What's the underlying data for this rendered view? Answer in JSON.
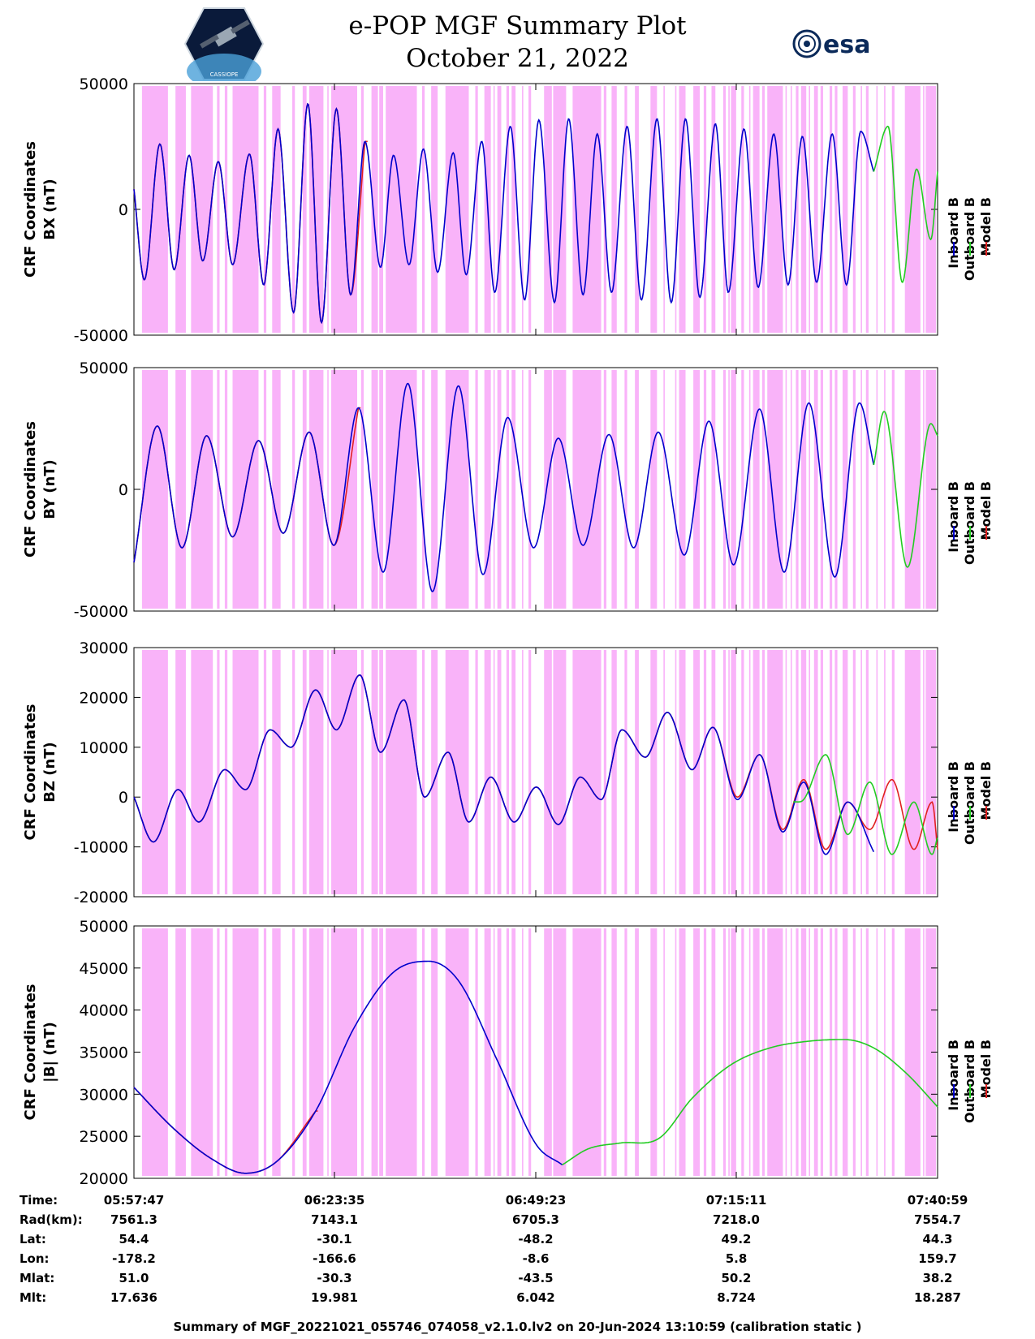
{
  "header": {
    "title_line1": "e-POP MGF Summary Plot",
    "title_line2": "October 21, 2022",
    "logo_left_text": "CASSIOPE",
    "logo_right_text": "esa"
  },
  "colors": {
    "inboard": "#0000cc",
    "outboard": "#22cc22",
    "model": "#e02020",
    "shading": "#f9b3f9"
  },
  "legend": [
    "Inboard B",
    "Outboard B",
    "Model B"
  ],
  "chart_data": [
    {
      "type": "line",
      "panel": "BX",
      "ylabel": [
        "CRF Coordinates",
        "BX (nT)"
      ],
      "ylim": [
        -50000,
        50000
      ],
      "yticks": [
        -50000,
        0,
        50000
      ],
      "x_range_sec": [
        0,
        6192
      ],
      "series": [
        {
          "name": "Inboard B",
          "color": "#0000cc",
          "segment": [
            0,
            5700
          ],
          "x": [
            0,
            80,
            200,
            310,
            425,
            530,
            650,
            760,
            890,
            1000,
            1110,
            1230,
            1340,
            1445,
            1560,
            1670,
            1780,
            1900,
            2000,
            2120,
            2230,
            2340,
            2460,
            2560,
            2680,
            2780,
            2900,
            3010,
            3120,
            3240,
            3350,
            3460,
            3570,
            3680,
            3800,
            3910,
            4030,
            4140,
            4250,
            4360,
            4480,
            4580,
            4700,
            4810,
            4930,
            5040,
            5150,
            5260,
            5380,
            5490,
            5600,
            5700
          ],
          "y": [
            8000,
            -28000,
            26000,
            -24000,
            21500,
            -20500,
            19000,
            -22000,
            22000,
            -30000,
            32000,
            -41000,
            42000,
            -45000,
            40000,
            -34000,
            27000,
            -23000,
            21500,
            -22000,
            24000,
            -25000,
            22500,
            -26000,
            27000,
            -33000,
            33000,
            -36000,
            35500,
            -37000,
            36000,
            -34000,
            30000,
            -33000,
            33000,
            -36000,
            36000,
            -37000,
            36000,
            -35000,
            34000,
            -33000,
            32000,
            -31000,
            30000,
            -30000,
            29000,
            -29000,
            30000,
            -30000,
            31000,
            15000
          ]
        },
        {
          "name": "Outboard B",
          "color": "#22cc22",
          "segment": [
            5700,
            6192
          ],
          "x": [
            5700,
            5810,
            5920,
            6030,
            6140,
            6192
          ],
          "y": [
            15000,
            33000,
            -29000,
            16000,
            -12000,
            15000
          ]
        },
        {
          "name": "Model B",
          "color": "#e02020",
          "segment": [
            0,
            1800
          ],
          "x": [
            0,
            80,
            200,
            310,
            425,
            530,
            650,
            760,
            890,
            1000,
            1110,
            1230,
            1340,
            1445,
            1560,
            1670,
            1780
          ],
          "y": [
            8000,
            -28000,
            26000,
            -24000,
            21500,
            -20500,
            19000,
            -22000,
            22000,
            -30000,
            32000,
            -41000,
            42000,
            -45000,
            40000,
            -34000,
            27000
          ]
        }
      ]
    },
    {
      "type": "line",
      "panel": "BY",
      "ylabel": [
        "CRF Coordinates",
        "BY (nT)"
      ],
      "ylim": [
        -50000,
        50000
      ],
      "yticks": [
        -50000,
        0,
        50000
      ],
      "x_range_sec": [
        0,
        6192
      ],
      "series": [
        {
          "name": "Inboard B",
          "color": "#0000cc",
          "segment": [
            0,
            5700
          ],
          "x": [
            0,
            180,
            370,
            560,
            760,
            960,
            1150,
            1350,
            1540,
            1730,
            1920,
            2110,
            2300,
            2500,
            2690,
            2880,
            3080,
            3270,
            3460,
            3660,
            3850,
            4040,
            4240,
            4430,
            4620,
            4820,
            5010,
            5200,
            5400,
            5590,
            5700
          ],
          "y": [
            -30000,
            26000,
            -24000,
            22000,
            -19500,
            20000,
            -18000,
            23500,
            -23000,
            33500,
            -34000,
            43500,
            -42000,
            42500,
            -35000,
            29500,
            -24000,
            21000,
            -23000,
            22500,
            -24000,
            23500,
            -27000,
            28000,
            -31000,
            33000,
            -34000,
            35500,
            -36000,
            35500,
            10000
          ]
        },
        {
          "name": "Outboard B",
          "color": "#22cc22",
          "segment": [
            5700,
            6192
          ],
          "x": [
            5700,
            5780,
            5960,
            6140,
            6192
          ],
          "y": [
            10000,
            32000,
            -32000,
            27000,
            22000
          ]
        },
        {
          "name": "Model B",
          "color": "#e02020",
          "segment": [
            0,
            1750
          ],
          "x": [
            0,
            180,
            370,
            560,
            760,
            960,
            1150,
            1350,
            1540,
            1730
          ],
          "y": [
            -30000,
            26000,
            -24000,
            22000,
            -19500,
            20000,
            -18000,
            23500,
            -23000,
            33500
          ]
        }
      ]
    },
    {
      "type": "line",
      "panel": "BZ",
      "ylabel": [
        "CRF Coordinates",
        "BZ (nT)"
      ],
      "ylim": [
        -20000,
        30000
      ],
      "yticks": [
        -20000,
        -10000,
        0,
        10000,
        20000,
        30000
      ],
      "x_range_sec": [
        0,
        6192
      ],
      "series": [
        {
          "name": "Inboard B",
          "color": "#0000cc",
          "segment": [
            0,
            5700
          ],
          "x": [
            0,
            150,
            340,
            500,
            700,
            860,
            1050,
            1210,
            1400,
            1560,
            1740,
            1900,
            2080,
            2240,
            2420,
            2580,
            2750,
            2930,
            3100,
            3270,
            3440,
            3600,
            3760,
            3940,
            4110,
            4300,
            4460,
            4650,
            4820,
            5000,
            5160,
            5330,
            5500,
            5700
          ],
          "y": [
            0,
            -9000,
            1500,
            -5000,
            5500,
            1500,
            13500,
            10000,
            21500,
            13500,
            24500,
            9000,
            19500,
            0,
            9000,
            -5000,
            4000,
            -5000,
            2000,
            -5500,
            4000,
            -500,
            13500,
            8000,
            17000,
            5500,
            14000,
            -500,
            8500,
            -7000,
            3000,
            -11500,
            -1000,
            -11000
          ]
        },
        {
          "name": "Outboard B",
          "color": "#22cc22",
          "segment": [
            5080,
            6192
          ],
          "x": [
            5080,
            5160,
            5330,
            5500,
            5670,
            5840,
            6010,
            6150,
            6192
          ],
          "y": [
            -1000,
            -500,
            8500,
            -7500,
            3000,
            -11500,
            -1000,
            -11500,
            -8000
          ]
        },
        {
          "name": "Model B",
          "color": "#e02020",
          "segment": [
            0,
            6192
          ],
          "x": [
            0,
            150,
            340,
            500,
            700,
            860,
            1050,
            1210,
            1400,
            1560,
            1740,
            1900,
            2080,
            2240,
            2420,
            2580,
            2750,
            2930,
            3100,
            3270,
            3440,
            3600,
            3760,
            3940,
            4110,
            4300,
            4460,
            4650,
            4820,
            5000,
            5160,
            5330,
            5500,
            5670,
            5840,
            6010,
            6150,
            6192
          ],
          "y": [
            0,
            -9000,
            1500,
            -5000,
            5500,
            1500,
            13500,
            10000,
            21500,
            13500,
            24500,
            9000,
            19500,
            0,
            9000,
            -5000,
            4000,
            -5000,
            2000,
            -5500,
            4000,
            -500,
            13500,
            8000,
            17000,
            5500,
            14000,
            0,
            8500,
            -6500,
            3500,
            -10500,
            -1000,
            -6500,
            3500,
            -10500,
            -1000,
            -10500
          ]
        }
      ]
    },
    {
      "type": "line",
      "panel": "|B|",
      "ylabel": [
        "CRF Coordinates",
        "|B| (nT)"
      ],
      "ylim": [
        20000,
        50000
      ],
      "yticks": [
        20000,
        25000,
        30000,
        35000,
        40000,
        45000,
        50000
      ],
      "x_range_sec": [
        0,
        6192
      ],
      "series": [
        {
          "name": "Inboard B",
          "color": "#0000cc",
          "segment": [
            0,
            3300
          ],
          "x": [
            0,
            300,
            600,
            860,
            1100,
            1400,
            1700,
            2000,
            2270,
            2500,
            2800,
            3100,
            3300
          ],
          "y": [
            30800,
            26000,
            22300,
            20600,
            22000,
            28000,
            38000,
            44500,
            45800,
            43500,
            34000,
            24000,
            21600
          ]
        },
        {
          "name": "Outboard B",
          "color": "#22cc22",
          "segment": [
            3300,
            6192
          ],
          "x": [
            3300,
            3500,
            3750,
            4050,
            4300,
            4600,
            4900,
            5200,
            5470,
            5700,
            5950,
            6192
          ],
          "y": [
            21600,
            23500,
            24200,
            24800,
            29500,
            33500,
            35500,
            36300,
            36500,
            35500,
            32500,
            28500
          ]
        },
        {
          "name": "Model B",
          "color": "#e02020",
          "segment": [
            0,
            1420
          ],
          "x": [
            0,
            300,
            600,
            860,
            1100,
            1400
          ],
          "y": [
            30800,
            26000,
            22300,
            20600,
            22000,
            28000
          ]
        }
      ]
    }
  ],
  "shading_intervals_sec": [
    [
      62,
      262
    ],
    [
      320,
      400
    ],
    [
      440,
      608
    ],
    [
      640,
      660
    ],
    [
      700,
      720
    ],
    [
      760,
      960
    ],
    [
      1000,
      1020
    ],
    [
      1065,
      1130
    ],
    [
      1220,
      1240
    ],
    [
      1300,
      1330
    ],
    [
      1350,
      1460
    ],
    [
      1490,
      1500
    ],
    [
      1520,
      1720
    ],
    [
      1750,
      1770
    ],
    [
      1830,
      1880
    ],
    [
      1890,
      1920
    ],
    [
      1940,
      2180
    ],
    [
      2220,
      2240
    ],
    [
      2290,
      2340
    ],
    [
      2400,
      2580
    ],
    [
      2630,
      2650
    ],
    [
      2700,
      2750
    ],
    [
      2770,
      2780
    ],
    [
      2800,
      2830
    ],
    [
      2870,
      2890
    ],
    [
      2910,
      2940
    ],
    [
      2990,
      3000
    ],
    [
      3040,
      3060
    ],
    [
      3160,
      3220
    ],
    [
      3230,
      3330
    ],
    [
      3380,
      3600
    ],
    [
      3620,
      3640
    ],
    [
      3680,
      3720
    ],
    [
      3780,
      3800
    ],
    [
      3860,
      3890
    ],
    [
      3980,
      4030
    ],
    [
      4080,
      4090
    ],
    [
      4170,
      4180
    ],
    [
      4200,
      4250
    ],
    [
      4310,
      4360
    ],
    [
      4390,
      4410
    ],
    [
      4450,
      4480
    ],
    [
      4540,
      4560
    ],
    [
      4580,
      4590
    ],
    [
      4600,
      4640
    ],
    [
      4680,
      4700
    ],
    [
      4740,
      4750
    ],
    [
      4770,
      4820
    ],
    [
      4840,
      4860
    ],
    [
      4880,
      5000
    ],
    [
      5020,
      5030
    ],
    [
      5060,
      5070
    ],
    [
      5100,
      5120
    ],
    [
      5140,
      5180
    ],
    [
      5200,
      5210
    ],
    [
      5240,
      5270
    ],
    [
      5290,
      5310
    ],
    [
      5360,
      5380
    ],
    [
      5400,
      5420
    ],
    [
      5460,
      5500
    ],
    [
      5540,
      5560
    ],
    [
      5600,
      5610
    ],
    [
      5640,
      5660
    ],
    [
      5720,
      5730
    ],
    [
      5780,
      5790
    ],
    [
      5840,
      5860
    ],
    [
      5940,
      6060
    ],
    [
      6080,
      6090
    ],
    [
      6100,
      6180
    ]
  ],
  "xticks": [
    "05:57:47",
    "06:23:35",
    "06:49:23",
    "07:15:11",
    "07:40:59"
  ],
  "table": {
    "row_labels": [
      "Time:",
      "Rad(km):",
      "Lat:",
      "Lon:",
      "Mlat:",
      "Mlt:"
    ],
    "columns": [
      [
        "05:57:47",
        "7561.3",
        "54.4",
        "-178.2",
        "51.0",
        "17.636"
      ],
      [
        "06:23:35",
        "7143.1",
        "-30.1",
        "-166.6",
        "-30.3",
        "19.981"
      ],
      [
        "06:49:23",
        "6705.3",
        "-48.2",
        "-8.6",
        "-43.5",
        "6.042"
      ],
      [
        "07:15:11",
        "7218.0",
        "49.2",
        "5.8",
        "50.2",
        "8.724"
      ],
      [
        "07:40:59",
        "7554.7",
        "44.3",
        "159.7",
        "38.2",
        "18.287"
      ]
    ]
  },
  "footer": "Summary of MGF_20221021_055746_074058_v2.1.0.lv2 on 20-Jun-2024 13:10:59 (calibration static )"
}
